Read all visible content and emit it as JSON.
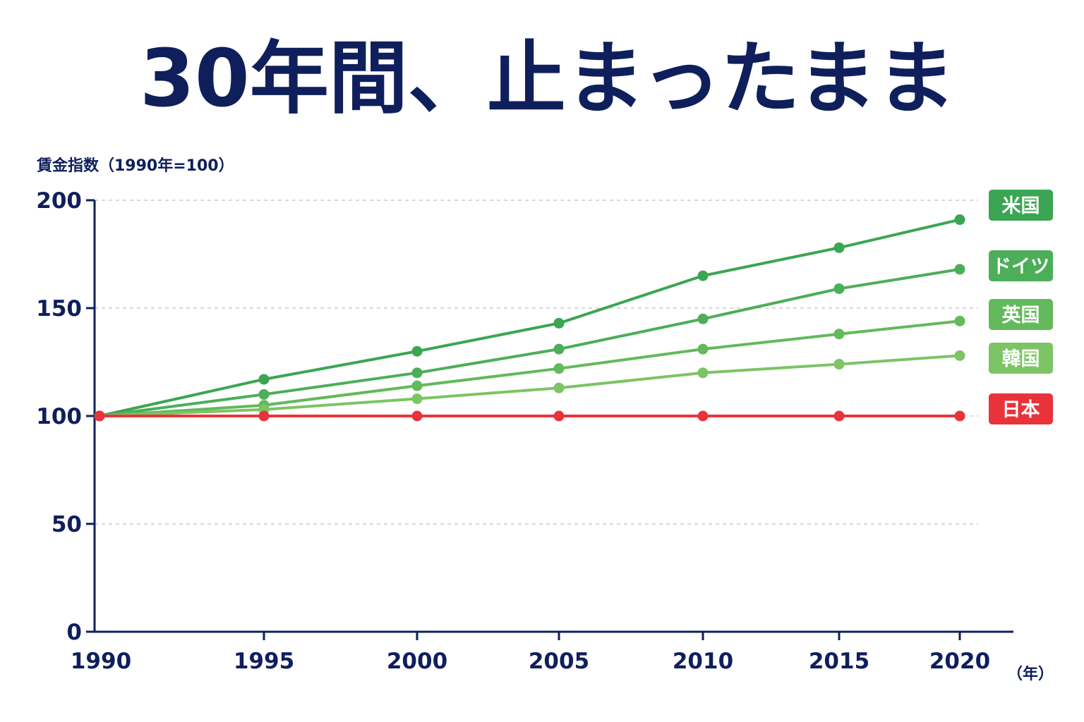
{
  "title": "30年間、止まったまま",
  "colors": {
    "navy": "#0f1f5c",
    "grid": "#c8ccd6",
    "japan": "#e8333b"
  },
  "chart_data": {
    "type": "line",
    "title": "30年間、止まったまま",
    "ylabel": "賃金指数（1990年=100）",
    "xlabel": "",
    "x_unit": "（年）",
    "x": [
      1990,
      1995,
      2000,
      2005,
      2010,
      2015,
      2020
    ],
    "x_tick_labels": [
      "1990",
      "1995",
      "2000",
      "2005",
      "2010",
      "2015",
      "2020"
    ],
    "ylim": [
      0,
      200
    ],
    "yticks": [
      0,
      50,
      100,
      150,
      200
    ],
    "y_tick_labels": [
      "0",
      "50",
      "100",
      "150",
      "200"
    ],
    "grid": true,
    "legend_placement": "right, labels at line ends",
    "series": [
      {
        "name": "米国",
        "color": "#3ba553",
        "values": [
          100,
          117,
          130,
          143,
          165,
          178,
          191
        ]
      },
      {
        "name": "ドイツ",
        "color": "#4cae58",
        "values": [
          100,
          110,
          120,
          131,
          145,
          159,
          168
        ]
      },
      {
        "name": "英国",
        "color": "#63b95b",
        "values": [
          100,
          105,
          114,
          122,
          131,
          138,
          144
        ]
      },
      {
        "name": "韓国",
        "color": "#7cc464",
        "values": [
          100,
          103,
          108,
          113,
          120,
          124,
          128
        ]
      },
      {
        "name": "日本",
        "color": "#e8333b",
        "values": [
          100,
          100,
          100,
          100,
          100,
          100,
          100
        ]
      }
    ]
  }
}
